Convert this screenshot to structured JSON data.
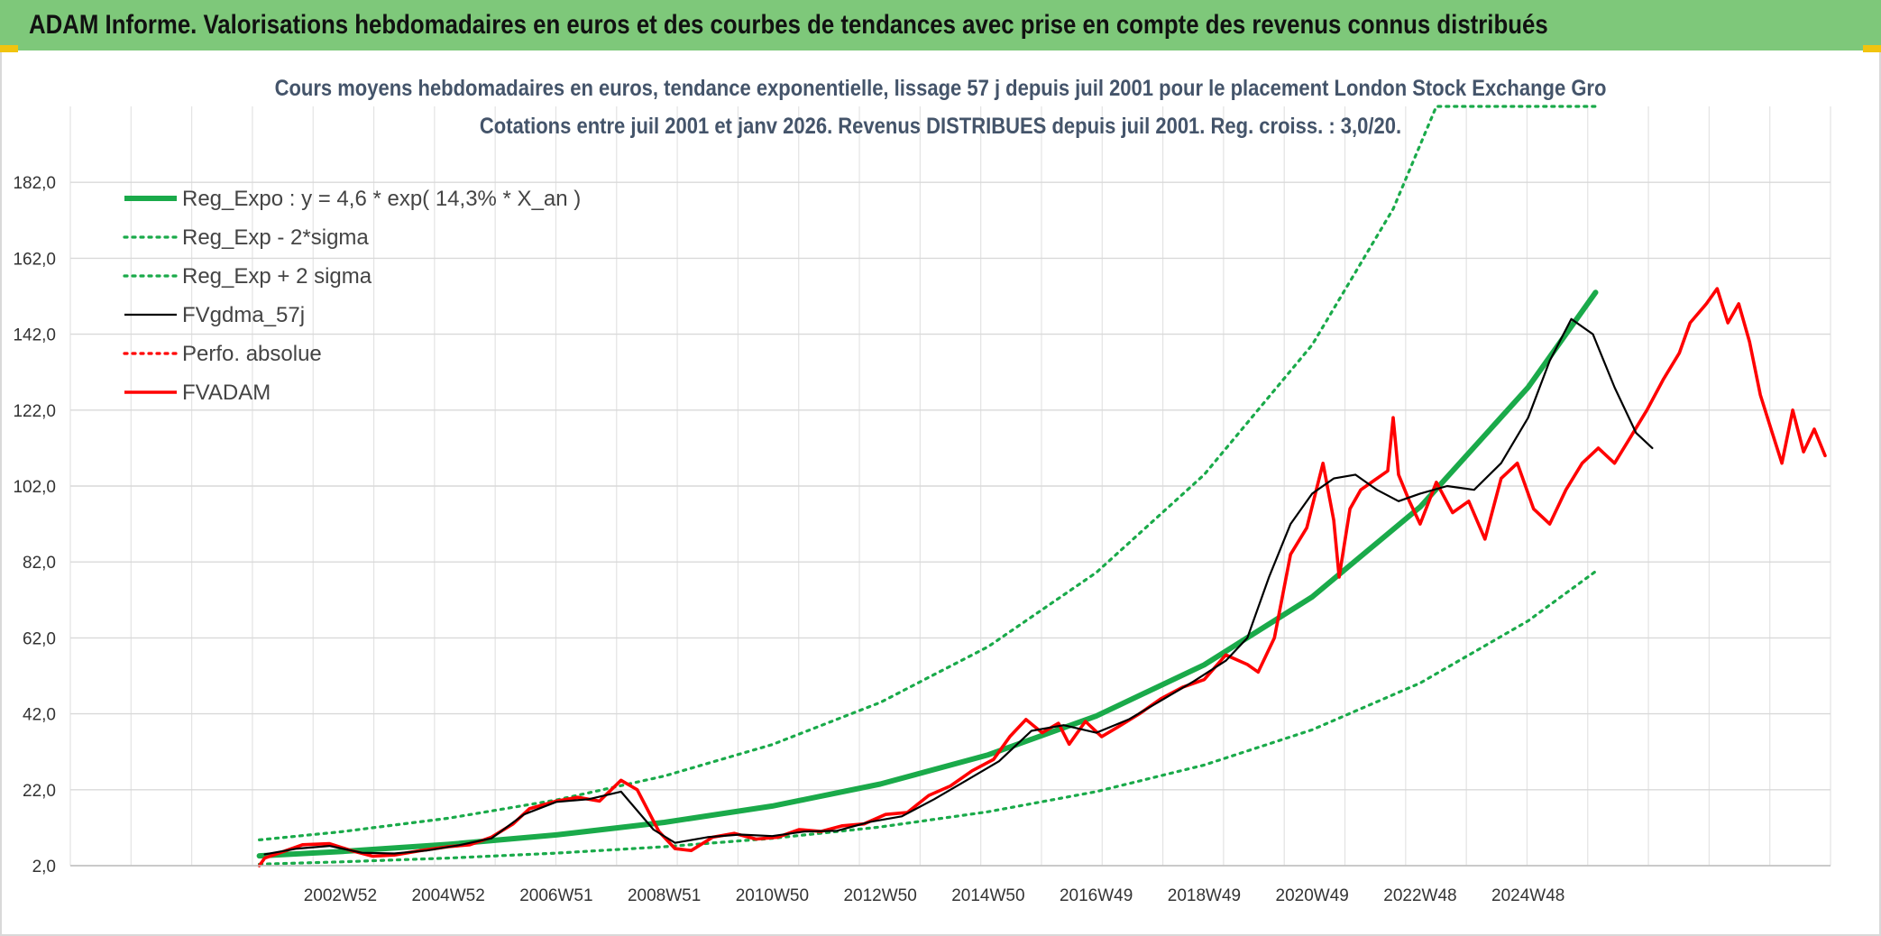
{
  "header": {
    "title": "ADAM Informe. Valorisations hebdomadaires en euros et des courbes de tendances avec prise en compte des revenus connus distribués"
  },
  "chart_data": {
    "type": "line",
    "title": "Cours moyens hebdomadaires en euros, tendance exponentielle, lissage 57 j depuis juil 2001 pour le placement London Stock Exchange Gro",
    "subtitle": "Cotations entre juil 2001 et janv 2026. Revenus DISTRIBUES depuis juil 2001. Reg. croiss. : 3,0/20.",
    "xlabel": "",
    "ylabel": "",
    "x_tick_labels": [
      "2002W52",
      "2004W52",
      "2006W51",
      "2008W51",
      "2010W50",
      "2012W50",
      "2014W50",
      "2016W49",
      "2018W49",
      "2020W49",
      "2022W48",
      "2024W48"
    ],
    "y_tick_labels": [
      "2,0",
      "22,0",
      "42,0",
      "62,0",
      "82,0",
      "102,0",
      "122,0",
      "142,0",
      "162,0",
      "182,0"
    ],
    "ylim": [
      2,
      202
    ],
    "grid": true,
    "legend_position": "top-left",
    "x_unit": "year",
    "series": [
      {
        "name": "Reg_Expo : y = 4,6 * exp( 14,3% *  X_an )",
        "color": "#1aaa4a",
        "style": "solid-thick",
        "points": [
          [
            2001.5,
            4.6
          ],
          [
            2003,
            5.7
          ],
          [
            2005,
            7.6
          ],
          [
            2007,
            10.1
          ],
          [
            2009,
            13.4
          ],
          [
            2011,
            17.7
          ],
          [
            2013,
            23.5
          ],
          [
            2015,
            31.2
          ],
          [
            2017,
            41.4
          ],
          [
            2019,
            54.9
          ],
          [
            2021,
            72.8
          ],
          [
            2023,
            96.5
          ],
          [
            2025,
            128.0
          ],
          [
            2026.25,
            153.0
          ]
        ]
      },
      {
        "name": "Reg_Exp - 2*sigma",
        "color": "#1aaa4a",
        "style": "dotted",
        "points": [
          [
            2001.5,
            2.4
          ],
          [
            2003,
            3.0
          ],
          [
            2005,
            4.0
          ],
          [
            2007,
            5.3
          ],
          [
            2009,
            7.0
          ],
          [
            2011,
            9.2
          ],
          [
            2013,
            12.2
          ],
          [
            2015,
            16.2
          ],
          [
            2017,
            21.5
          ],
          [
            2019,
            28.5
          ],
          [
            2021,
            37.8
          ],
          [
            2023,
            50.1
          ],
          [
            2025,
            66.5
          ],
          [
            2026.25,
            79.5
          ]
        ]
      },
      {
        "name": "Reg_Exp + 2 sigma",
        "color": "#1aaa4a",
        "style": "dotted",
        "points": [
          [
            2001.5,
            8.8
          ],
          [
            2003,
            10.9
          ],
          [
            2005,
            14.5
          ],
          [
            2007,
            19.3
          ],
          [
            2009,
            25.6
          ],
          [
            2011,
            33.9
          ],
          [
            2013,
            45.0
          ],
          [
            2015,
            59.7
          ],
          [
            2017,
            79.2
          ],
          [
            2019,
            105.0
          ],
          [
            2021,
            139.2
          ],
          [
            2022.5,
            175.0
          ],
          [
            2023.3,
            202.0
          ],
          [
            2026.25,
            202.0
          ]
        ]
      },
      {
        "name": "FVgdma_57j",
        "color": "#000000",
        "style": "solid",
        "points": [
          [
            2001.6,
            5.0
          ],
          [
            2002.2,
            6.5
          ],
          [
            2002.8,
            7.2
          ],
          [
            2003.4,
            5.4
          ],
          [
            2004,
            5.2
          ],
          [
            2004.6,
            6.0
          ],
          [
            2005.2,
            7.4
          ],
          [
            2005.8,
            9.2
          ],
          [
            2006.4,
            15.5
          ],
          [
            2007,
            18.8
          ],
          [
            2007.6,
            19.5
          ],
          [
            2008.2,
            21.5
          ],
          [
            2008.8,
            11.5
          ],
          [
            2009.2,
            8.0
          ],
          [
            2009.8,
            9.5
          ],
          [
            2010.4,
            10.2
          ],
          [
            2011,
            9.8
          ],
          [
            2011.6,
            11.0
          ],
          [
            2012.2,
            11.2
          ],
          [
            2012.8,
            13.5
          ],
          [
            2013.4,
            15.0
          ],
          [
            2014,
            19.5
          ],
          [
            2014.6,
            24.5
          ],
          [
            2015.2,
            29.5
          ],
          [
            2015.8,
            37.5
          ],
          [
            2016.4,
            39.0
          ],
          [
            2017,
            37.0
          ],
          [
            2017.6,
            40.5
          ],
          [
            2018.2,
            45.5
          ],
          [
            2018.8,
            50.5
          ],
          [
            2019.4,
            56.0
          ],
          [
            2019.8,
            62.0
          ],
          [
            2020.2,
            78.0
          ],
          [
            2020.6,
            92.0
          ],
          [
            2021,
            100.0
          ],
          [
            2021.4,
            104.0
          ],
          [
            2021.8,
            105.0
          ],
          [
            2022.2,
            101.0
          ],
          [
            2022.6,
            98.0
          ],
          [
            2023,
            100.0
          ],
          [
            2023.5,
            102.0
          ],
          [
            2024,
            101.0
          ],
          [
            2024.5,
            108.0
          ],
          [
            2025,
            120.0
          ],
          [
            2025.4,
            135.0
          ],
          [
            2025.8,
            146.0
          ],
          [
            2026.2,
            142.0
          ],
          [
            2026.6,
            128.0
          ],
          [
            2027,
            116.0
          ],
          [
            2027.3,
            112.0
          ]
        ]
      },
      {
        "name": "Perfo. absolue",
        "color": "#ff0000",
        "style": "dotted",
        "points": []
      },
      {
        "name": "FVADAM",
        "color": "#ff0000",
        "style": "solid-thick",
        "points": [
          [
            2001.5,
            2.0
          ],
          [
            2001.6,
            4.0
          ],
          [
            2001.9,
            5.5
          ],
          [
            2002.3,
            7.5
          ],
          [
            2002.8,
            7.8
          ],
          [
            2003.2,
            6.0
          ],
          [
            2003.6,
            4.5
          ],
          [
            2004,
            4.8
          ],
          [
            2004.5,
            6.0
          ],
          [
            2005,
            7.0
          ],
          [
            2005.4,
            7.5
          ],
          [
            2005.8,
            9.5
          ],
          [
            2006.2,
            13.0
          ],
          [
            2006.5,
            17.0
          ],
          [
            2007,
            19.0
          ],
          [
            2007.4,
            20.0
          ],
          [
            2007.8,
            19.0
          ],
          [
            2008.2,
            24.5
          ],
          [
            2008.5,
            22.0
          ],
          [
            2008.9,
            11.0
          ],
          [
            2009.2,
            6.5
          ],
          [
            2009.5,
            6.0
          ],
          [
            2009.9,
            9.5
          ],
          [
            2010.3,
            10.5
          ],
          [
            2010.7,
            9.0
          ],
          [
            2011.1,
            9.5
          ],
          [
            2011.5,
            11.5
          ],
          [
            2011.9,
            11.0
          ],
          [
            2012.3,
            12.5
          ],
          [
            2012.7,
            13.0
          ],
          [
            2013.1,
            15.5
          ],
          [
            2013.5,
            16.0
          ],
          [
            2013.9,
            20.5
          ],
          [
            2014.3,
            23.0
          ],
          [
            2014.7,
            27.0
          ],
          [
            2015.1,
            30.0
          ],
          [
            2015.4,
            36.0
          ],
          [
            2015.7,
            40.5
          ],
          [
            2016,
            37.0
          ],
          [
            2016.3,
            39.5
          ],
          [
            2016.5,
            34.0
          ],
          [
            2016.8,
            40.0
          ],
          [
            2017.1,
            36.0
          ],
          [
            2017.4,
            38.5
          ],
          [
            2017.8,
            42.0
          ],
          [
            2018.2,
            46.0
          ],
          [
            2018.6,
            49.0
          ],
          [
            2019,
            51.0
          ],
          [
            2019.4,
            57.5
          ],
          [
            2019.8,
            55.0
          ],
          [
            2020,
            53.0
          ],
          [
            2020.3,
            62.0
          ],
          [
            2020.6,
            84.0
          ],
          [
            2020.9,
            91.0
          ],
          [
            2021.2,
            108.0
          ],
          [
            2021.4,
            93.0
          ],
          [
            2021.5,
            78.0
          ],
          [
            2021.7,
            96.0
          ],
          [
            2021.9,
            101.0
          ],
          [
            2022.2,
            104.0
          ],
          [
            2022.4,
            106.0
          ],
          [
            2022.5,
            120.0
          ],
          [
            2022.6,
            105.0
          ],
          [
            2022.8,
            98.0
          ],
          [
            2023,
            92.0
          ],
          [
            2023.3,
            103.0
          ],
          [
            2023.6,
            95.0
          ],
          [
            2023.9,
            98.0
          ],
          [
            2024.2,
            88.0
          ],
          [
            2024.5,
            104.0
          ],
          [
            2024.8,
            108.0
          ],
          [
            2025.1,
            96.0
          ],
          [
            2025.4,
            92.0
          ],
          [
            2025.7,
            101.0
          ],
          [
            2026,
            108.0
          ],
          [
            2026.3,
            112.0
          ],
          [
            2026.6,
            108.0
          ],
          [
            2026.9,
            115.0
          ],
          [
            2027.2,
            122.0
          ],
          [
            2027.5,
            130.0
          ],
          [
            2027.8,
            137.0
          ],
          [
            2028,
            145.0
          ],
          [
            2028.3,
            150.0
          ],
          [
            2028.5,
            154.0
          ],
          [
            2028.7,
            145.0
          ],
          [
            2028.9,
            150.0
          ],
          [
            2029.1,
            140.0
          ],
          [
            2029.3,
            126.0
          ],
          [
            2029.5,
            117.0
          ],
          [
            2029.7,
            108.0
          ],
          [
            2029.9,
            122.0
          ],
          [
            2030.1,
            111.0
          ],
          [
            2030.3,
            117.0
          ],
          [
            2030.5,
            110.0
          ]
        ]
      }
    ]
  }
}
